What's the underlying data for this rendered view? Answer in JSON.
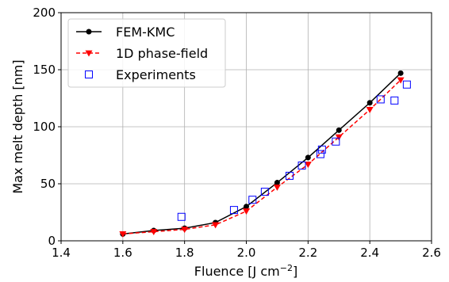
{
  "chart_data": {
    "type": "line",
    "title": "",
    "xlabel": "Fluence [J cm",
    "xlabel_superscript": "−2",
    "xlabel_suffix": "]",
    "ylabel": "Max melt depth [nm]",
    "xlim": [
      1.4,
      2.6
    ],
    "ylim": [
      0,
      200
    ],
    "x_ticks": [
      "1.4",
      "1.6",
      "1.8",
      "2.0",
      "2.2",
      "2.4",
      "2.6"
    ],
    "y_ticks": [
      "0",
      "50",
      "100",
      "150",
      "200"
    ],
    "grid": true,
    "legend_position": "top-left",
    "series": [
      {
        "name": "FEM-KMC",
        "style": "solid-line-circle-markers",
        "color": "#000000",
        "x": [
          1.6,
          1.7,
          1.8,
          1.9,
          2.0,
          2.1,
          2.2,
          2.3,
          2.4,
          2.5
        ],
        "y": [
          6,
          9,
          11,
          16,
          30,
          51,
          73,
          97,
          121,
          147
        ]
      },
      {
        "name": "1D phase-field",
        "style": "dashed-line-triangle-down-markers",
        "color": "#ff0000",
        "x": [
          1.6,
          1.7,
          1.8,
          1.9,
          2.0,
          2.1,
          2.2,
          2.3,
          2.4,
          2.5
        ],
        "y": [
          6,
          8,
          10,
          14,
          26,
          47,
          67,
          91,
          115,
          141
        ]
      },
      {
        "name": "Experiments",
        "style": "open-square-markers",
        "color": "#0000ff",
        "x": [
          1.79,
          1.96,
          2.02,
          2.06,
          2.14,
          2.18,
          2.24,
          2.245,
          2.29,
          2.435,
          2.48,
          2.52
        ],
        "y": [
          21,
          27,
          36,
          43,
          57,
          66,
          76,
          80,
          87,
          124,
          123,
          137
        ]
      }
    ]
  }
}
